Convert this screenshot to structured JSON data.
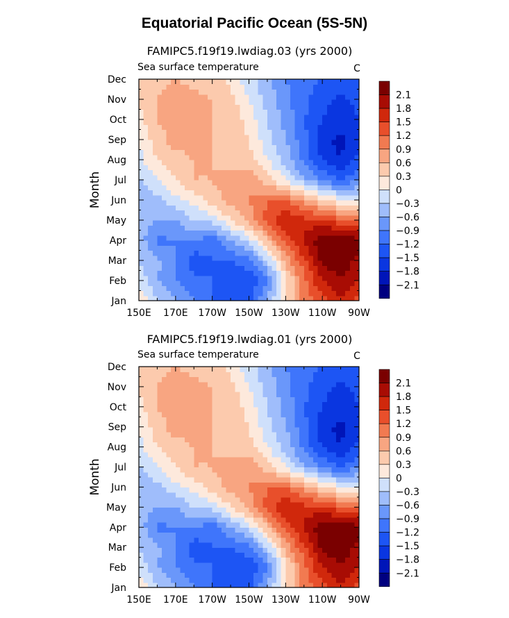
{
  "title": "Equatorial Pacific Ocean (5S-5N)",
  "colorbar": {
    "labels": [
      "2.1",
      "1.8",
      "1.5",
      "1.2",
      "0.9",
      "0.6",
      "0.3",
      "0",
      "−0.3",
      "−0.6",
      "−0.9",
      "−1.2",
      "−1.5",
      "−1.8",
      "−2.1"
    ],
    "levels": [
      -2.1,
      -1.8,
      -1.5,
      -1.2,
      -0.9,
      -0.6,
      -0.3,
      0,
      0.3,
      0.6,
      0.9,
      1.2,
      1.5,
      1.8,
      2.1
    ],
    "colors": [
      "#000080",
      "#0015b8",
      "#0a36e0",
      "#1d55f4",
      "#3f75fb",
      "#6a97fa",
      "#9fbdfb",
      "#cfe0fb",
      "#fde9dc",
      "#fccaad",
      "#f8a581",
      "#f17a51",
      "#e84f2b",
      "#d0280c",
      "#a80c04",
      "#7a0000"
    ]
  },
  "chart_data": [
    {
      "type": "heatmap",
      "title": "FAMIPC5.f19f19.lwdiag.03 (yrs 2000)",
      "subtitle": "Sea surface temperature",
      "units": "C",
      "ylabel": "Month",
      "xlabel": "",
      "x_ticks": [
        "150E",
        "170E",
        "170W",
        "150W",
        "130W",
        "110W",
        "90W"
      ],
      "x_tick_lon": [
        150,
        170,
        190,
        210,
        230,
        250,
        270
      ],
      "y_ticks": [
        "Jan",
        "Feb",
        "Mar",
        "Apr",
        "May",
        "Jun",
        "Jul",
        "Aug",
        "Sep",
        "Oct",
        "Nov",
        "Dec"
      ],
      "xlim": [
        150,
        270
      ],
      "ylim": [
        1,
        12
      ],
      "grid_lon": [
        150,
        160,
        170,
        180,
        190,
        200,
        210,
        220,
        230,
        240,
        250,
        260,
        270
      ],
      "values": [
        [
          0.3,
          -0.3,
          -0.6,
          -0.9,
          -1.2,
          -1.5,
          -1.3,
          -0.5,
          0.3,
          1.0,
          1.4,
          1.7,
          1.4
        ],
        [
          -0.1,
          -0.6,
          -0.9,
          -1.1,
          -1.2,
          -1.4,
          -1.5,
          -1.0,
          0.2,
          1.1,
          1.8,
          2.1,
          1.8
        ],
        [
          -0.3,
          -0.5,
          -0.9,
          -1.4,
          -1.2,
          -1.2,
          -1.0,
          -0.3,
          0.7,
          1.4,
          2.2,
          2.3,
          2.0
        ],
        [
          -0.4,
          -1.0,
          -0.9,
          -0.9,
          -1.1,
          -0.6,
          -0.2,
          0.6,
          1.3,
          1.9,
          2.3,
          2.4,
          2.2
        ],
        [
          -0.5,
          -0.6,
          -0.6,
          -0.3,
          -0.2,
          0.3,
          0.7,
          1.3,
          1.8,
          1.6,
          1.6,
          1.3,
          1.2
        ],
        [
          -0.6,
          -0.4,
          -0.1,
          0.1,
          0.5,
          0.7,
          0.9,
          1.2,
          1.2,
          0.8,
          0.3,
          0.1,
          0.0
        ],
        [
          -0.3,
          0.0,
          0.3,
          0.6,
          0.6,
          0.7,
          0.8,
          0.4,
          0.0,
          -0.5,
          -0.9,
          -1.2,
          -0.9
        ],
        [
          -0.1,
          0.3,
          0.5,
          0.6,
          0.6,
          0.5,
          0.4,
          0.0,
          -0.4,
          -1.0,
          -1.5,
          -1.8,
          -1.4
        ],
        [
          0.0,
          0.5,
          0.7,
          0.7,
          0.6,
          0.5,
          0.3,
          -0.2,
          -0.6,
          -1.1,
          -1.7,
          -1.9,
          -1.6
        ],
        [
          0.2,
          0.6,
          0.7,
          0.8,
          0.6,
          0.5,
          0.2,
          -0.3,
          -0.7,
          -1.2,
          -1.5,
          -1.7,
          -1.5
        ],
        [
          0.3,
          0.6,
          0.8,
          0.7,
          0.6,
          0.4,
          0.0,
          -0.4,
          -0.8,
          -1.1,
          -1.4,
          -1.6,
          -1.4
        ],
        [
          0.3,
          0.5,
          0.6,
          0.5,
          0.4,
          0.2,
          -0.2,
          -0.5,
          -0.9,
          -1.1,
          -1.2,
          -1.4,
          -1.2
        ]
      ]
    },
    {
      "type": "heatmap",
      "title": "FAMIPC5.f19f19.lwdiag.01 (yrs 2000)",
      "subtitle": "Sea surface temperature",
      "units": "C",
      "ylabel": "Month",
      "xlabel": "",
      "x_ticks": [
        "150E",
        "170E",
        "170W",
        "150W",
        "130W",
        "110W",
        "90W"
      ],
      "x_tick_lon": [
        150,
        170,
        190,
        210,
        230,
        250,
        270
      ],
      "y_ticks": [
        "Jan",
        "Feb",
        "Mar",
        "Apr",
        "May",
        "Jun",
        "Jul",
        "Aug",
        "Sep",
        "Oct",
        "Nov",
        "Dec"
      ],
      "xlim": [
        150,
        270
      ],
      "ylim": [
        1,
        12
      ],
      "grid_lon": [
        150,
        160,
        170,
        180,
        190,
        200,
        210,
        220,
        230,
        240,
        250,
        260,
        270
      ],
      "values": [
        [
          0.3,
          -0.3,
          -0.6,
          -0.9,
          -1.2,
          -1.5,
          -1.3,
          -0.5,
          0.3,
          1.0,
          1.4,
          1.7,
          1.4
        ],
        [
          -0.1,
          -0.6,
          -0.9,
          -1.1,
          -1.2,
          -1.4,
          -1.5,
          -1.0,
          0.2,
          1.1,
          1.8,
          2.1,
          1.8
        ],
        [
          -0.3,
          -0.5,
          -0.9,
          -1.4,
          -1.2,
          -1.2,
          -1.0,
          -0.3,
          0.7,
          1.4,
          2.2,
          2.3,
          2.0
        ],
        [
          -0.4,
          -1.0,
          -0.9,
          -0.9,
          -1.1,
          -0.6,
          -0.2,
          0.6,
          1.3,
          1.9,
          2.3,
          2.4,
          2.2
        ],
        [
          -0.5,
          -0.6,
          -0.6,
          -0.3,
          -0.2,
          0.3,
          0.7,
          1.3,
          1.8,
          1.6,
          1.6,
          1.3,
          1.2
        ],
        [
          -0.6,
          -0.4,
          -0.1,
          0.1,
          0.5,
          0.7,
          0.9,
          1.2,
          1.2,
          0.8,
          0.3,
          0.1,
          0.0
        ],
        [
          -0.3,
          0.0,
          0.3,
          0.6,
          0.6,
          0.7,
          0.8,
          0.4,
          0.0,
          -0.5,
          -0.9,
          -1.2,
          -0.9
        ],
        [
          -0.1,
          0.3,
          0.5,
          0.6,
          0.6,
          0.5,
          0.4,
          0.0,
          -0.4,
          -1.0,
          -1.5,
          -1.8,
          -1.4
        ],
        [
          0.0,
          0.5,
          0.7,
          0.7,
          0.6,
          0.5,
          0.3,
          -0.2,
          -0.6,
          -1.1,
          -1.7,
          -1.9,
          -1.6
        ],
        [
          0.2,
          0.6,
          0.7,
          0.8,
          0.6,
          0.5,
          0.2,
          -0.3,
          -0.7,
          -1.2,
          -1.5,
          -1.7,
          -1.5
        ],
        [
          0.3,
          0.6,
          0.8,
          0.7,
          0.6,
          0.4,
          0.0,
          -0.4,
          -0.8,
          -1.1,
          -1.4,
          -1.6,
          -1.4
        ],
        [
          0.3,
          0.5,
          0.6,
          0.5,
          0.4,
          0.2,
          -0.2,
          -0.5,
          -0.9,
          -1.1,
          -1.2,
          -1.4,
          -1.2
        ]
      ]
    }
  ]
}
